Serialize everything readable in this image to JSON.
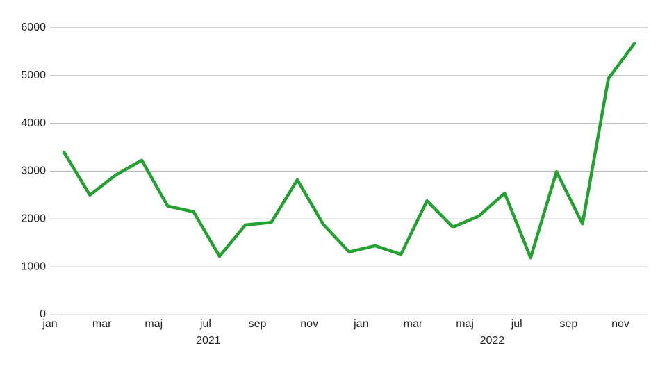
{
  "chart_data": {
    "type": "line",
    "categories": [
      "jan",
      null,
      "mar",
      null,
      "maj",
      null,
      "jul",
      null,
      "sep",
      null,
      "nov",
      null,
      "jan",
      null,
      "mar",
      null,
      "maj",
      null,
      "jul",
      null,
      "sep",
      null,
      "nov"
    ],
    "year_labels": [
      "2021",
      "2022"
    ],
    "series": [
      {
        "color": "#22a030",
        "values": [
          3400,
          2500,
          2920,
          3230,
          2270,
          2150,
          1220,
          1875,
          1930,
          2820,
          1890,
          1310,
          1440,
          1260,
          2380,
          1830,
          2060,
          2540,
          1190,
          2990,
          1900,
          4940,
          5670
        ]
      }
    ],
    "ylim": [
      0,
      6000
    ],
    "yticks": [
      0,
      1000,
      2000,
      3000,
      4000,
      5000,
      6000
    ],
    "grid": true
  }
}
